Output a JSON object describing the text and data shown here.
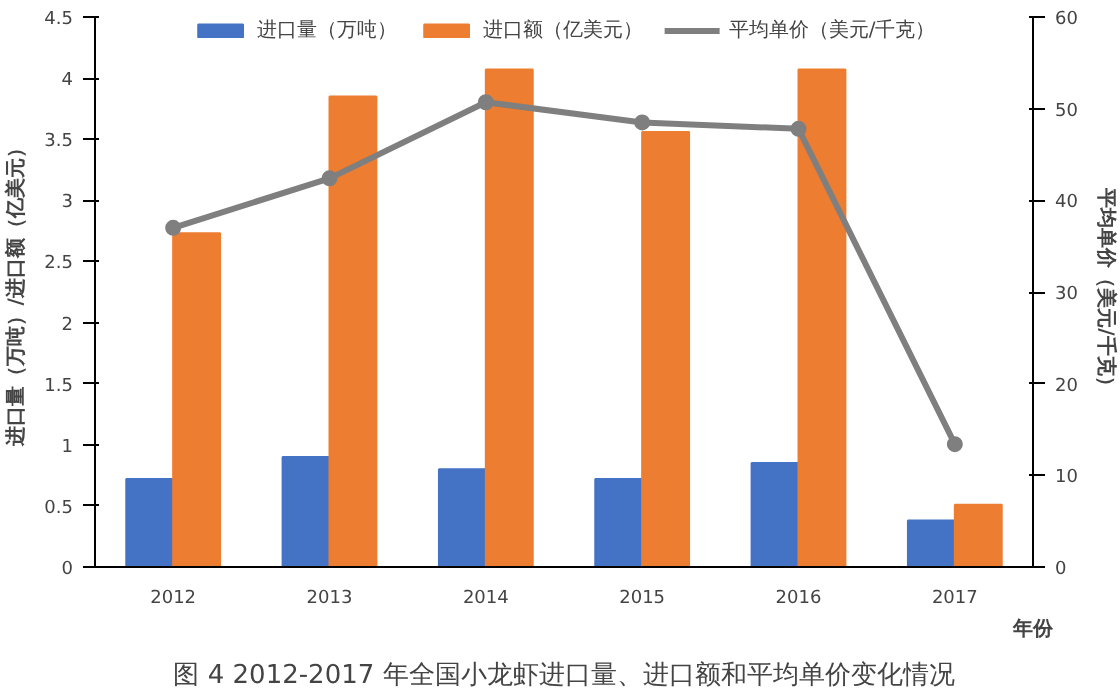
{
  "chart_data": {
    "type": "bar",
    "title": "图 4 2012-2017 年全国小龙虾进口量、进口额和平均单价变化情况",
    "xlabel": "年份",
    "ylabel": "进口量（万吨）/进口额（亿美元）",
    "y2label": "平均单价（美元/千克）",
    "categories": [
      "2012",
      "2013",
      "2014",
      "2015",
      "2016",
      "2017"
    ],
    "series": [
      {
        "name": "进口量（万吨）",
        "color": "#4472c4",
        "values": [
          0.72,
          0.9,
          0.8,
          0.72,
          0.85,
          0.38
        ]
      },
      {
        "name": "进口额（亿美元）",
        "color": "#ed7d31",
        "values": [
          2.73,
          3.85,
          4.07,
          3.56,
          4.07,
          0.51
        ]
      },
      {
        "name": "平均单价（美元/千克）",
        "type": "line",
        "axis": "y2",
        "color": "#7f7f7f",
        "marker": "circle",
        "values": [
          37,
          42.4,
          50.7,
          48.5,
          47.8,
          13.4
        ]
      }
    ],
    "ylim": [
      0,
      4.5
    ],
    "yticks": [
      0,
      0.5,
      1,
      1.5,
      2,
      2.5,
      3,
      3.5,
      4,
      4.5
    ],
    "y2lim": [
      0,
      60
    ],
    "y2ticks": [
      0,
      10,
      20,
      30,
      40,
      50,
      60
    ],
    "grid": false,
    "legend": "top"
  }
}
